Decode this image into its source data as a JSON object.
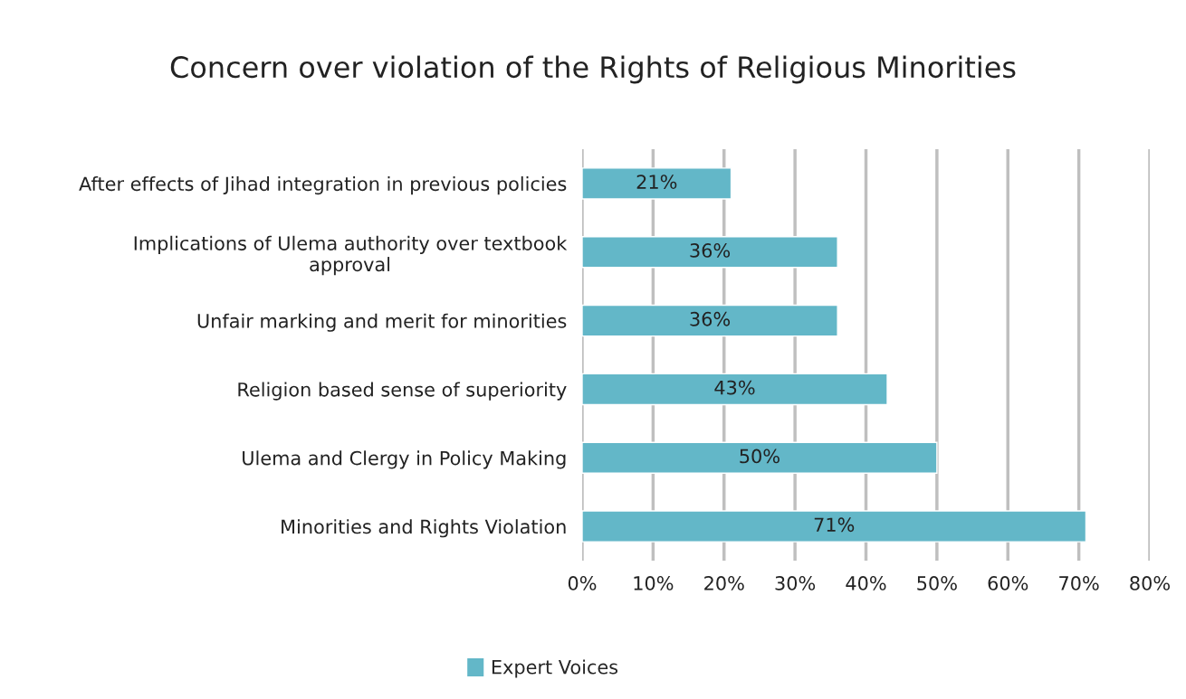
{
  "chart_data": {
    "type": "bar",
    "orientation": "horizontal",
    "title": "Concern over violation of the Rights of Religious Minorities",
    "categories": [
      "After effects of Jihad integration in previous policies",
      "Implications of Ulema authority over textbook\napproval",
      "Unfair marking and merit for minorities",
      "Religion based sense of superiority",
      "Ulema and Clergy in Policy Making",
      "Minorities and Rights Violation"
    ],
    "series": [
      {
        "name": "Expert Voices",
        "color": "#63b7c8",
        "values": [
          21,
          36,
          36,
          43,
          50,
          71
        ],
        "value_labels": [
          "21%",
          "36%",
          "36%",
          "43%",
          "50%",
          "71%"
        ]
      }
    ],
    "xlim": [
      0,
      80
    ],
    "xticks": [
      {
        "value": 0,
        "label": "0%"
      },
      {
        "value": 10,
        "label": "10%"
      },
      {
        "value": 20,
        "label": "20%"
      },
      {
        "value": 30,
        "label": "30%"
      },
      {
        "value": 40,
        "label": "40%"
      },
      {
        "value": 50,
        "label": "50%"
      },
      {
        "value": 60,
        "label": "60%"
      },
      {
        "value": 70,
        "label": "70%"
      },
      {
        "value": 80,
        "label": "80%"
      }
    ],
    "grid": "x",
    "legend": "bottom"
  }
}
